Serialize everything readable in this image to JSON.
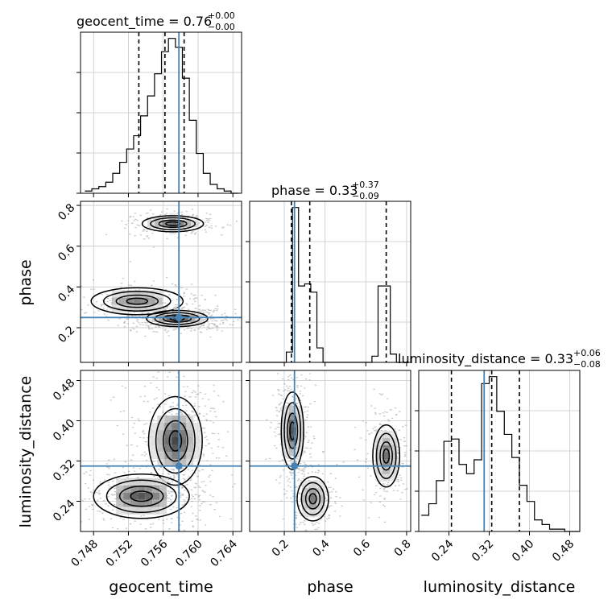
{
  "params": [
    "geocent_time",
    "phase",
    "luminosity_distance"
  ],
  "truth": {
    "geocent_time": 0.7578,
    "phase": 0.25,
    "luminosity_distance": 0.31
  },
  "colors": {
    "truth": "#4682b4",
    "contour": "#000000",
    "scatter": "#9a9a9a",
    "grid": "#c8c8c8"
  },
  "chart_data": {
    "type": "corner",
    "diagonal": [
      {
        "param": "geocent_time",
        "title": {
          "main": "geocent_time = 0.76",
          "sup": "+0.00",
          "sub": "−0.00"
        },
        "range": [
          0.7465,
          0.765
        ],
        "bin_edges_start": 0.747,
        "bin_width": 0.0008,
        "counts": [
          1,
          2,
          3,
          5,
          9,
          14,
          20,
          26,
          35,
          44,
          54,
          64,
          70,
          66,
          52,
          33,
          18,
          9,
          4,
          2,
          1,
          0
        ],
        "quantiles": [
          0.7532,
          0.7562,
          0.7584
        ]
      },
      {
        "param": "phase",
        "title": {
          "main": "phase = 0.33",
          "sup": "+0.37",
          "sub": "−0.09"
        },
        "range": [
          0.03,
          0.82
        ],
        "bin_edges_start": 0.03,
        "bin_width": 0.03,
        "counts": [
          0,
          0,
          0,
          0,
          0,
          0,
          5,
          75,
          37,
          38,
          34,
          7,
          0,
          0,
          0,
          0,
          0,
          0,
          0,
          0,
          3,
          37,
          37,
          4,
          0,
          0
        ],
        "quantiles": [
          0.235,
          0.325,
          0.7
        ]
      },
      {
        "param": "luminosity_distance",
        "title": {
          "main": "luminosity_distance = 0.33",
          "sup": "+0.06",
          "sub": "−0.08"
        },
        "range": [
          0.18,
          0.5
        ],
        "bin_edges_start": 0.185,
        "bin_width": 0.015,
        "counts": [
          7,
          12,
          22,
          39,
          40,
          29,
          25,
          31,
          64,
          67,
          52,
          42,
          32,
          20,
          13,
          5,
          3,
          1,
          1,
          0,
          0
        ],
        "quantiles": [
          0.245,
          0.325,
          0.38
        ]
      }
    ],
    "panels": [
      {
        "x": "geocent_time",
        "y": "phase",
        "xlim": [
          0.7465,
          0.765
        ],
        "ylim": [
          0.03,
          0.82
        ],
        "clusters": [
          {
            "cx": 0.7571,
            "cy": 0.71,
            "sx": 0.0016,
            "sy": 0.018,
            "weight": 0.3
          },
          {
            "cx": 0.753,
            "cy": 0.33,
            "sx": 0.0024,
            "sy": 0.03,
            "weight": 0.22
          },
          {
            "cx": 0.7576,
            "cy": 0.245,
            "sx": 0.0016,
            "sy": 0.018,
            "weight": 0.48
          }
        ]
      },
      {
        "x": "geocent_time",
        "y": "luminosity_distance",
        "xlim": [
          0.7465,
          0.765
        ],
        "ylim": [
          0.18,
          0.5
        ],
        "clusters": [
          {
            "cx": 0.7574,
            "cy": 0.36,
            "sx": 0.0014,
            "sy": 0.04,
            "weight": 0.55
          },
          {
            "cx": 0.7535,
            "cy": 0.25,
            "sx": 0.0025,
            "sy": 0.02,
            "weight": 0.45
          }
        ]
      },
      {
        "x": "phase",
        "y": "luminosity_distance",
        "xlim": [
          0.03,
          0.82
        ],
        "ylim": [
          0.18,
          0.5
        ],
        "clusters": [
          {
            "cx": 0.24,
            "cy": 0.38,
            "sx": 0.025,
            "sy": 0.035,
            "weight": 0.45
          },
          {
            "cx": 0.34,
            "cy": 0.245,
            "sx": 0.035,
            "sy": 0.02,
            "weight": 0.25
          },
          {
            "cx": 0.7,
            "cy": 0.33,
            "sx": 0.03,
            "sy": 0.028,
            "weight": 0.3
          }
        ]
      }
    ],
    "ticks": {
      "geocent_time": {
        "values": [
          0.748,
          0.752,
          0.756,
          0.76,
          0.764
        ],
        "labels": [
          "0.748",
          "0.752",
          "0.756",
          "0.760",
          "0.764"
        ]
      },
      "phase": {
        "values": [
          0.2,
          0.4,
          0.6,
          0.8
        ],
        "labels": [
          "0.2",
          "0.4",
          "0.6",
          "0.8"
        ]
      },
      "luminosity_distance": {
        "values": [
          0.24,
          0.32,
          0.4,
          0.48
        ],
        "labels": [
          "0.24",
          "0.32",
          "0.40",
          "0.48"
        ]
      }
    },
    "axis_labels": {
      "geocent_time": "geocent_time",
      "phase": "phase",
      "luminosity_distance": "luminosity_distance"
    },
    "grid": true
  }
}
